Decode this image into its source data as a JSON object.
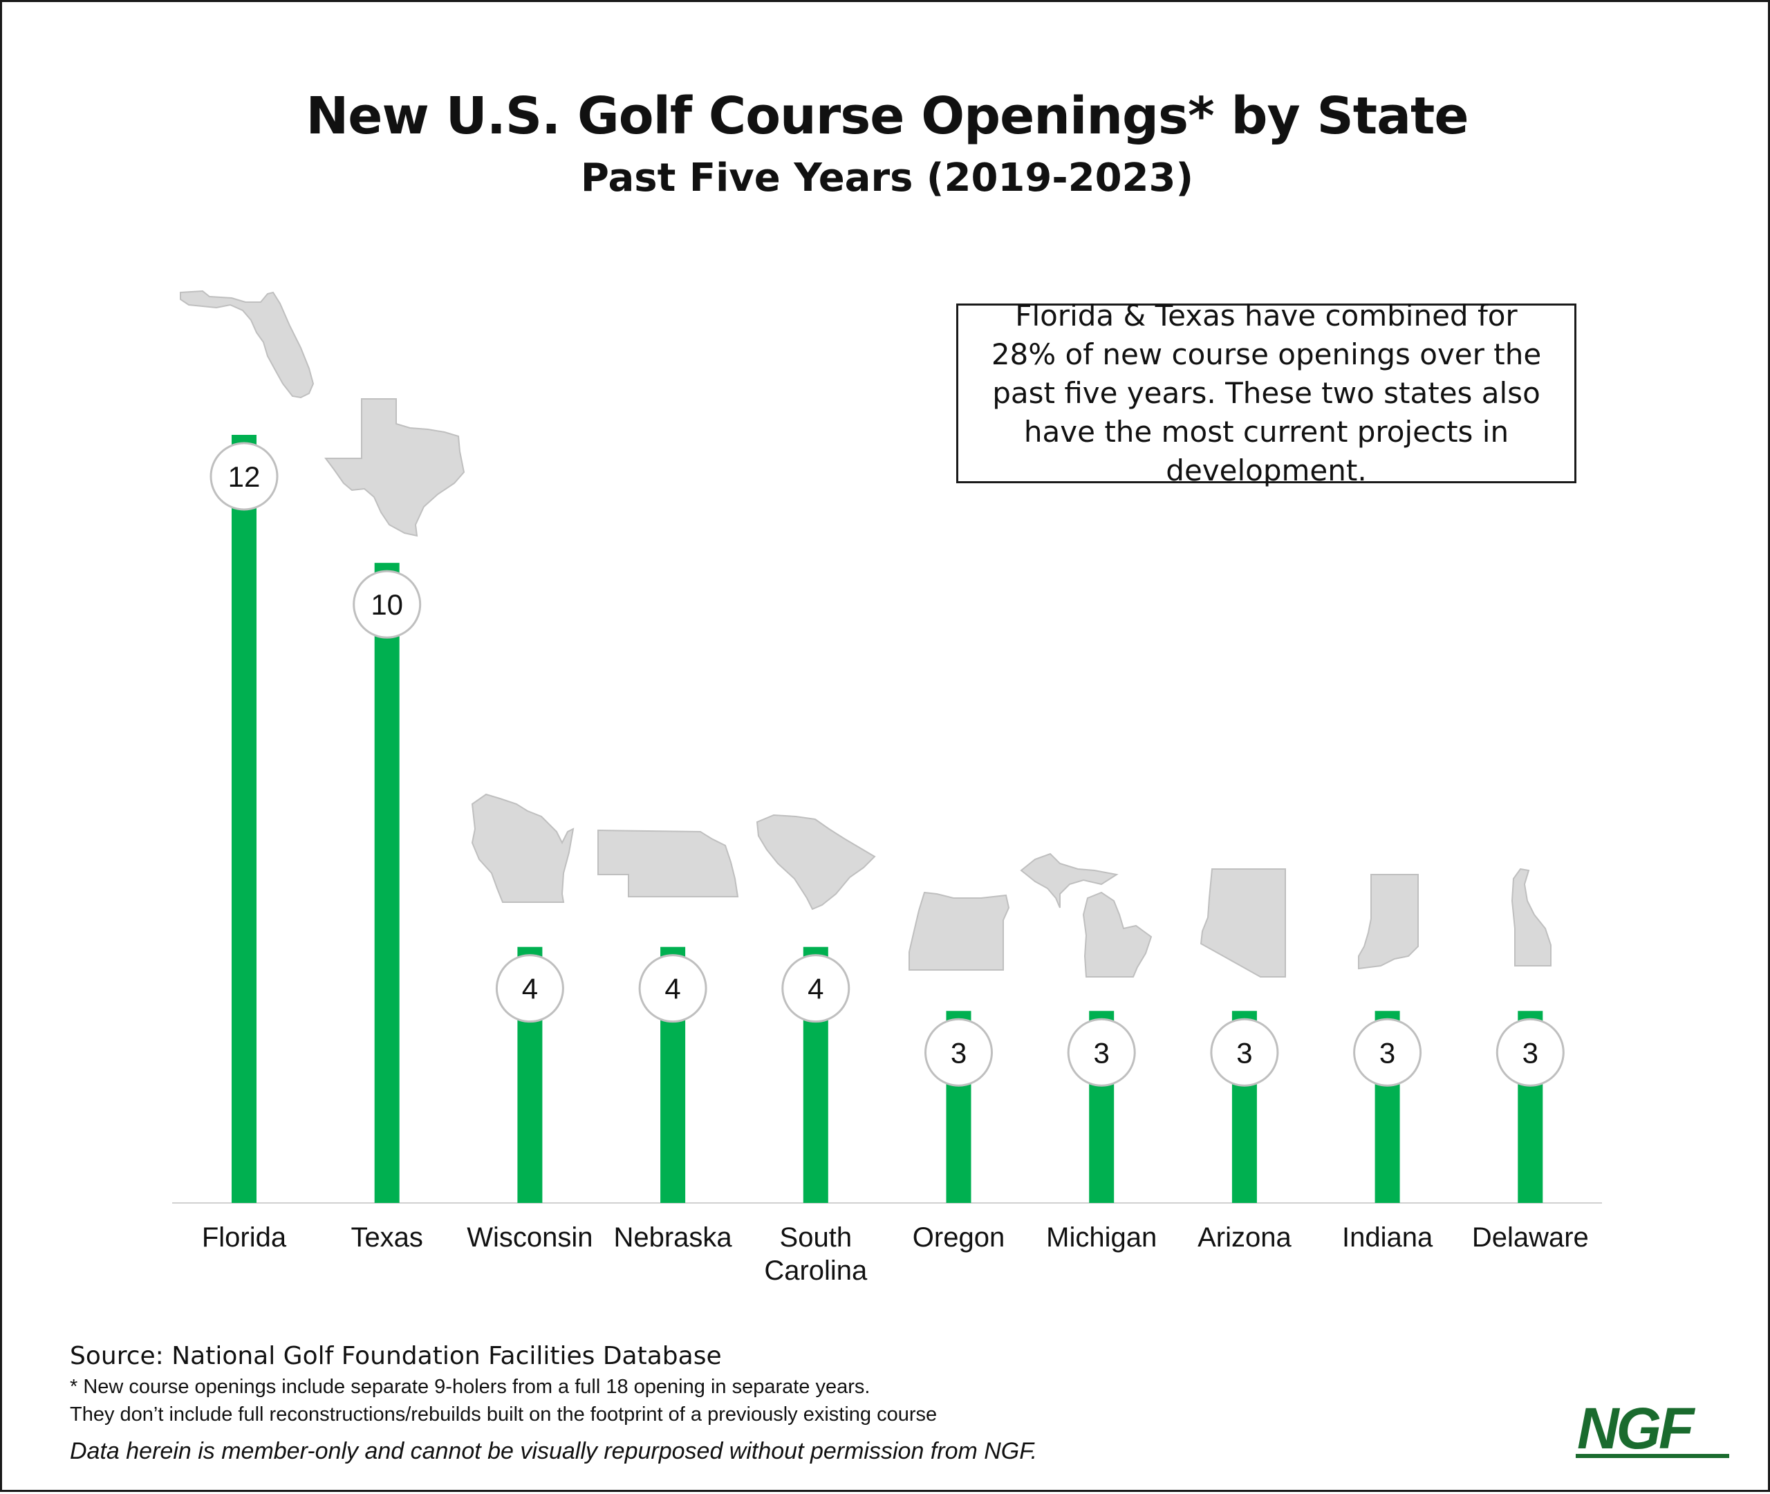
{
  "chart_data": {
    "type": "bar",
    "title": "New U.S. Golf Course Openings* by State",
    "subtitle": "Past Five Years (2019-2023)",
    "categories": [
      "Florida",
      "Texas",
      "Wisconsin",
      "Nebraska",
      "South Carolina",
      "Oregon",
      "Michigan",
      "Arizona",
      "Indiana",
      "Delaware"
    ],
    "values": [
      12,
      10,
      4,
      4,
      4,
      3,
      3,
      3,
      3,
      3
    ],
    "ylim": [
      0,
      12
    ],
    "grid": false,
    "legend": "none",
    "bar_color": "#00b050",
    "annotation": "Florida & Texas have combined for 28% of new course openings over the past five years. These two states also have the most current projects in development."
  },
  "state_icons": [
    "florida-map",
    "texas-map",
    "wisconsin-map",
    "nebraska-map",
    "south-carolina-map",
    "oregon-map",
    "michigan-map",
    "arizona-map",
    "indiana-map",
    "delaware-map"
  ],
  "colors": {
    "bar": "#00b050",
    "state_shape": "#d9d9d9",
    "state_outline": "#bfbfbf",
    "badge_border": "#bfbfbf",
    "logo": "#1a6b2e"
  },
  "footer": {
    "source": "Source: National Golf Foundation Facilities Database",
    "note_1": "* New course openings include separate 9-holers from a full 18 opening in separate years.",
    "note_2": "They don’t include full reconstructions/rebuilds built on the footprint of a previously existing course",
    "disclaimer": "Data herein is member-only and cannot be visually repurposed without permission from NGF."
  },
  "logo": {
    "text": "NGF"
  }
}
